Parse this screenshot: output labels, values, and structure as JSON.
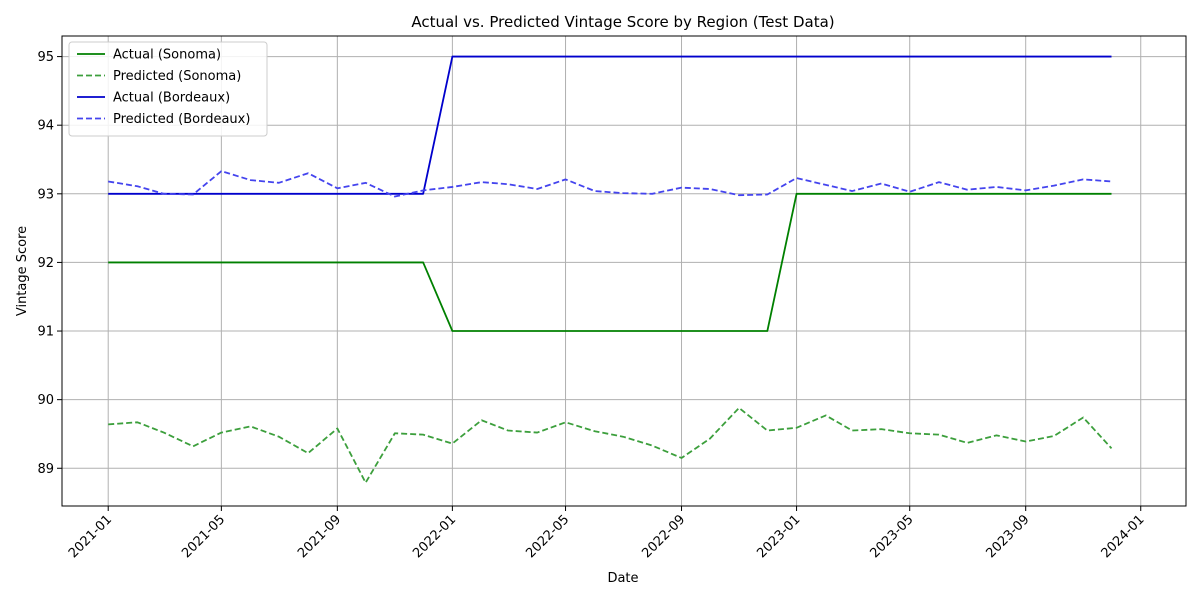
{
  "chart_data": {
    "type": "line",
    "title": "Actual vs. Predicted Vintage Score by Region (Test Data)",
    "xlabel": "Date",
    "ylabel": "Vintage Score",
    "x": [
      "2021-01",
      "2021-02",
      "2021-03",
      "2021-04",
      "2021-05",
      "2021-06",
      "2021-07",
      "2021-08",
      "2021-09",
      "2021-10",
      "2021-11",
      "2021-12",
      "2022-01",
      "2022-02",
      "2022-03",
      "2022-04",
      "2022-05",
      "2022-06",
      "2022-07",
      "2022-08",
      "2022-09",
      "2022-10",
      "2022-11",
      "2022-12",
      "2023-01",
      "2023-02",
      "2023-03",
      "2023-04",
      "2023-05",
      "2023-06",
      "2023-07",
      "2023-08",
      "2023-09",
      "2023-10",
      "2023-11",
      "2023-12"
    ],
    "xticks": [
      "2021-01",
      "2021-05",
      "2021-09",
      "2022-01",
      "2022-05",
      "2022-09",
      "2023-01",
      "2023-05",
      "2023-09",
      "2024-01"
    ],
    "xlim": [
      "2020-11-13",
      "2024-02-18"
    ],
    "ylim": [
      88.45,
      95.3
    ],
    "yticks": [
      89,
      90,
      91,
      92,
      93,
      94,
      95
    ],
    "grid": true,
    "legend_position": "upper-left",
    "series": [
      {
        "name": "Actual (Sonoma)",
        "color": "#008000",
        "style": "solid",
        "values": [
          92,
          92,
          92,
          92,
          92,
          92,
          92,
          92,
          92,
          92,
          92,
          92,
          91,
          91,
          91,
          91,
          91,
          91,
          91,
          91,
          91,
          91,
          91,
          91,
          93,
          93,
          93,
          93,
          93,
          93,
          93,
          93,
          93,
          93,
          93,
          93
        ]
      },
      {
        "name": "Predicted (Sonoma)",
        "color": "#3c9f3c",
        "style": "dashed",
        "values": [
          89.64,
          89.67,
          89.52,
          89.32,
          89.52,
          89.61,
          89.46,
          89.22,
          89.58,
          88.79,
          89.51,
          89.49,
          89.36,
          89.7,
          89.55,
          89.52,
          89.67,
          89.54,
          89.46,
          89.33,
          89.15,
          89.43,
          89.88,
          89.55,
          89.59,
          89.77,
          89.55,
          89.57,
          89.51,
          89.49,
          89.37,
          89.48,
          89.39,
          89.47,
          89.74,
          89.29
        ]
      },
      {
        "name": "Actual (Bordeaux)",
        "color": "#0000cc",
        "style": "solid",
        "values": [
          93,
          93,
          93,
          93,
          93,
          93,
          93,
          93,
          93,
          93,
          93,
          93,
          95,
          95,
          95,
          95,
          95,
          95,
          95,
          95,
          95,
          95,
          95,
          95,
          95,
          95,
          95,
          95,
          95,
          95,
          95,
          95,
          95,
          95,
          95,
          95
        ]
      },
      {
        "name": "Predicted (Bordeaux)",
        "color": "#4444ee",
        "style": "dashed",
        "values": [
          93.18,
          93.11,
          93.0,
          92.99,
          93.33,
          93.2,
          93.16,
          93.3,
          93.08,
          93.16,
          92.96,
          93.05,
          93.1,
          93.17,
          93.14,
          93.07,
          93.21,
          93.04,
          93.01,
          93.0,
          93.09,
          93.07,
          92.98,
          92.99,
          93.23,
          93.13,
          93.04,
          93.15,
          93.03,
          93.17,
          93.06,
          93.1,
          93.05,
          93.12,
          93.21,
          93.18
        ]
      }
    ]
  }
}
